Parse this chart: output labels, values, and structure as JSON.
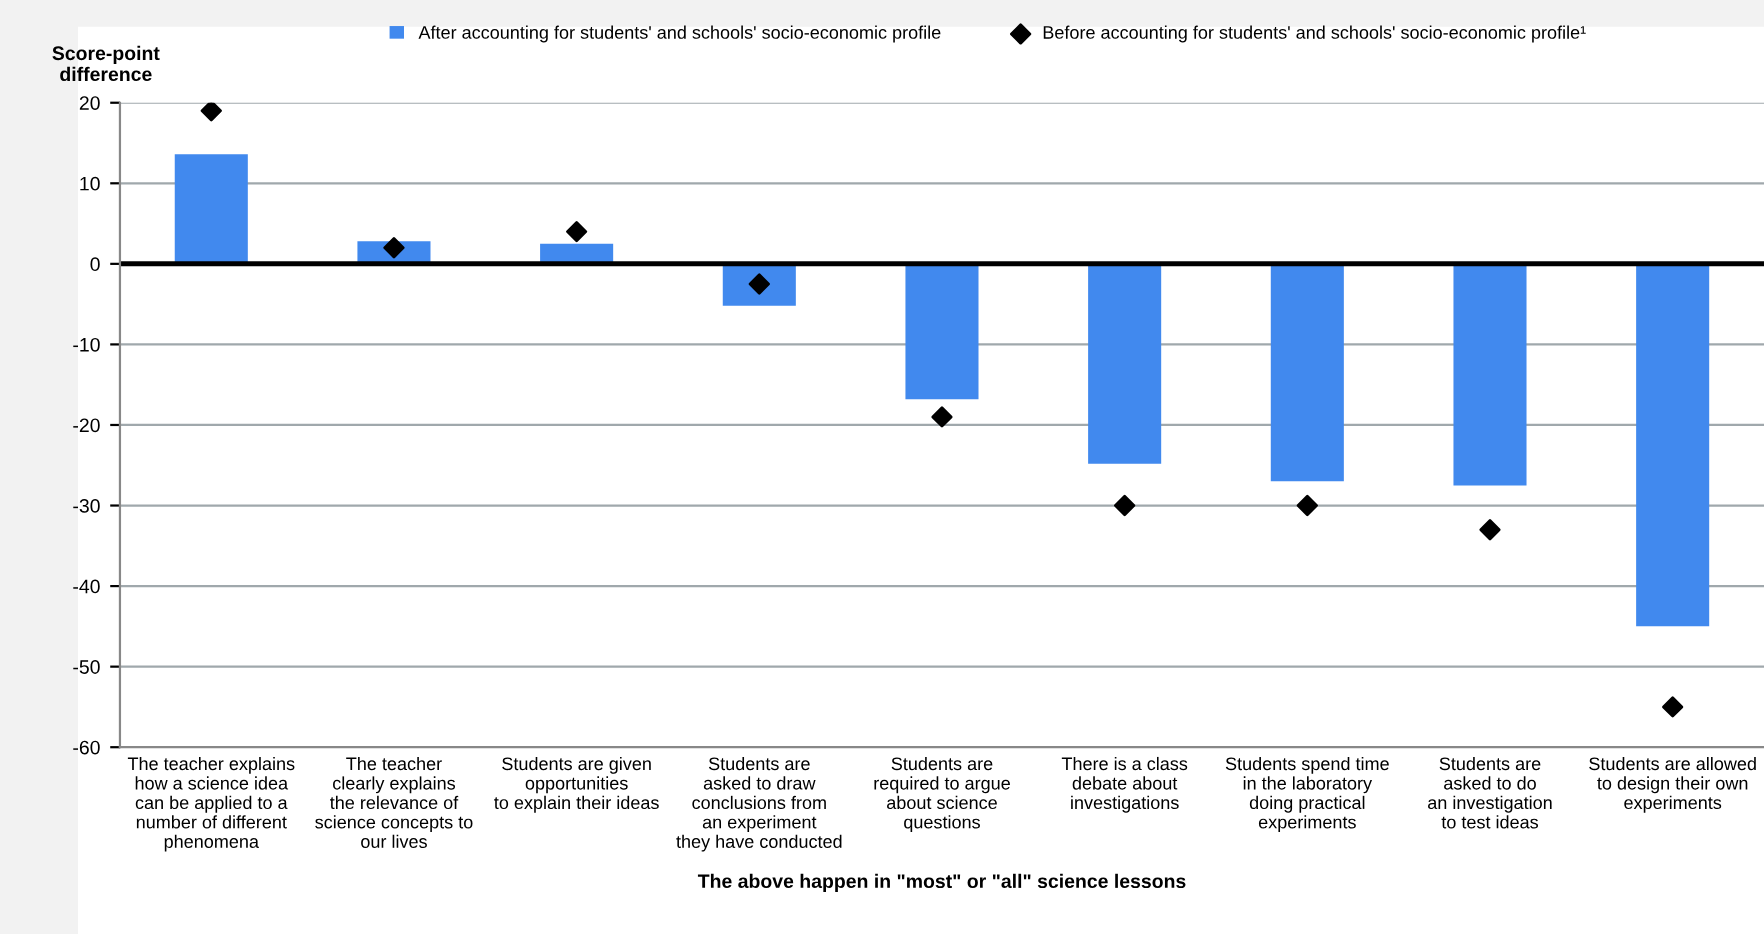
{
  "chart_data": {
    "type": "bar",
    "ylabel": "Score-point\ndifference",
    "xlabel": "The above happen in \"most\" or \"all\" science lessons",
    "categories": [
      "The teacher explains\nhow a science idea\ncan be applied to a\nnumber of different\nphenomena",
      "The teacher\nclearly explains\nthe relevance of\nscience concepts to\nour lives",
      "Students are given\nopportunities\nto explain their ideas",
      "Students are\nasked to draw\nconclusions from\nan experiment\nthey have conducted",
      "Students are\nrequired to argue\nabout science\nquestions",
      "There is a class\ndebate about\ninvestigations",
      "Students spend time\nin the laboratory\ndoing practical\nexperiments",
      "Students are\nasked to do\nan investigation\nto test ideas",
      "Students are allowed\nto design their own\nexperiments"
    ],
    "series": [
      {
        "name": "After accounting for students' and schools' socio-economic profile",
        "color": "#4189ee",
        "values": [
          13.6,
          2.8,
          2.5,
          -5.2,
          -16.8,
          -24.8,
          -27,
          -27.5,
          -45
        ]
      },
      {
        "name": "Before accounting for students' and schools' socio-economic profile¹",
        "type": "scatter",
        "marker": "diamond",
        "color": "#000000",
        "values": [
          19,
          2,
          4,
          -2.5,
          -19,
          -30,
          -30,
          -33,
          -55
        ]
      }
    ],
    "ylim": [
      -60,
      20
    ],
    "yticks": [
      -60,
      -50,
      -40,
      -30,
      -20,
      -10,
      0,
      10,
      20
    ],
    "grid": "y",
    "legend": "top"
  }
}
